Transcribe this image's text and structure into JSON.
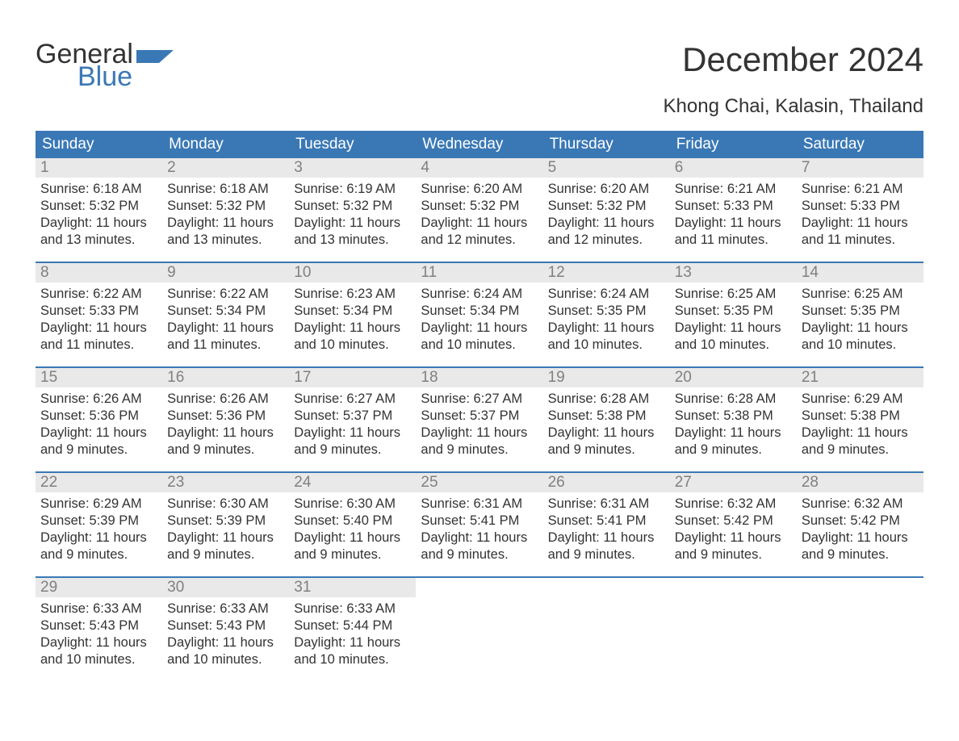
{
  "brand": {
    "word1": "General",
    "word2": "Blue",
    "flag_color": "#3a78b5"
  },
  "title": "December 2024",
  "subtitle": "Khong Chai, Kalasin, Thailand",
  "colors": {
    "header_bg": "#3a78b5",
    "header_text": "#ffffff",
    "daynum_bg": "#e9e9e9",
    "daynum_text": "#808080",
    "body_text": "#333333",
    "week_divider": "#3a78b5",
    "page_bg": "#ffffff"
  },
  "typography": {
    "title_fontsize": 42,
    "subtitle_fontsize": 24,
    "dow_fontsize": 19,
    "daynum_fontsize": 19,
    "body_fontsize": 16.5,
    "logo_fontsize": 34
  },
  "days_of_week": [
    "Sunday",
    "Monday",
    "Tuesday",
    "Wednesday",
    "Thursday",
    "Friday",
    "Saturday"
  ],
  "weeks": [
    [
      {
        "n": "1",
        "sunrise": "Sunrise: 6:18 AM",
        "sunset": "Sunset: 5:32 PM",
        "day1": "Daylight: 11 hours",
        "day2": "and 13 minutes."
      },
      {
        "n": "2",
        "sunrise": "Sunrise: 6:18 AM",
        "sunset": "Sunset: 5:32 PM",
        "day1": "Daylight: 11 hours",
        "day2": "and 13 minutes."
      },
      {
        "n": "3",
        "sunrise": "Sunrise: 6:19 AM",
        "sunset": "Sunset: 5:32 PM",
        "day1": "Daylight: 11 hours",
        "day2": "and 13 minutes."
      },
      {
        "n": "4",
        "sunrise": "Sunrise: 6:20 AM",
        "sunset": "Sunset: 5:32 PM",
        "day1": "Daylight: 11 hours",
        "day2": "and 12 minutes."
      },
      {
        "n": "5",
        "sunrise": "Sunrise: 6:20 AM",
        "sunset": "Sunset: 5:32 PM",
        "day1": "Daylight: 11 hours",
        "day2": "and 12 minutes."
      },
      {
        "n": "6",
        "sunrise": "Sunrise: 6:21 AM",
        "sunset": "Sunset: 5:33 PM",
        "day1": "Daylight: 11 hours",
        "day2": "and 11 minutes."
      },
      {
        "n": "7",
        "sunrise": "Sunrise: 6:21 AM",
        "sunset": "Sunset: 5:33 PM",
        "day1": "Daylight: 11 hours",
        "day2": "and 11 minutes."
      }
    ],
    [
      {
        "n": "8",
        "sunrise": "Sunrise: 6:22 AM",
        "sunset": "Sunset: 5:33 PM",
        "day1": "Daylight: 11 hours",
        "day2": "and 11 minutes."
      },
      {
        "n": "9",
        "sunrise": "Sunrise: 6:22 AM",
        "sunset": "Sunset: 5:34 PM",
        "day1": "Daylight: 11 hours",
        "day2": "and 11 minutes."
      },
      {
        "n": "10",
        "sunrise": "Sunrise: 6:23 AM",
        "sunset": "Sunset: 5:34 PM",
        "day1": "Daylight: 11 hours",
        "day2": "and 10 minutes."
      },
      {
        "n": "11",
        "sunrise": "Sunrise: 6:24 AM",
        "sunset": "Sunset: 5:34 PM",
        "day1": "Daylight: 11 hours",
        "day2": "and 10 minutes."
      },
      {
        "n": "12",
        "sunrise": "Sunrise: 6:24 AM",
        "sunset": "Sunset: 5:35 PM",
        "day1": "Daylight: 11 hours",
        "day2": "and 10 minutes."
      },
      {
        "n": "13",
        "sunrise": "Sunrise: 6:25 AM",
        "sunset": "Sunset: 5:35 PM",
        "day1": "Daylight: 11 hours",
        "day2": "and 10 minutes."
      },
      {
        "n": "14",
        "sunrise": "Sunrise: 6:25 AM",
        "sunset": "Sunset: 5:35 PM",
        "day1": "Daylight: 11 hours",
        "day2": "and 10 minutes."
      }
    ],
    [
      {
        "n": "15",
        "sunrise": "Sunrise: 6:26 AM",
        "sunset": "Sunset: 5:36 PM",
        "day1": "Daylight: 11 hours",
        "day2": "and 9 minutes."
      },
      {
        "n": "16",
        "sunrise": "Sunrise: 6:26 AM",
        "sunset": "Sunset: 5:36 PM",
        "day1": "Daylight: 11 hours",
        "day2": "and 9 minutes."
      },
      {
        "n": "17",
        "sunrise": "Sunrise: 6:27 AM",
        "sunset": "Sunset: 5:37 PM",
        "day1": "Daylight: 11 hours",
        "day2": "and 9 minutes."
      },
      {
        "n": "18",
        "sunrise": "Sunrise: 6:27 AM",
        "sunset": "Sunset: 5:37 PM",
        "day1": "Daylight: 11 hours",
        "day2": "and 9 minutes."
      },
      {
        "n": "19",
        "sunrise": "Sunrise: 6:28 AM",
        "sunset": "Sunset: 5:38 PM",
        "day1": "Daylight: 11 hours",
        "day2": "and 9 minutes."
      },
      {
        "n": "20",
        "sunrise": "Sunrise: 6:28 AM",
        "sunset": "Sunset: 5:38 PM",
        "day1": "Daylight: 11 hours",
        "day2": "and 9 minutes."
      },
      {
        "n": "21",
        "sunrise": "Sunrise: 6:29 AM",
        "sunset": "Sunset: 5:38 PM",
        "day1": "Daylight: 11 hours",
        "day2": "and 9 minutes."
      }
    ],
    [
      {
        "n": "22",
        "sunrise": "Sunrise: 6:29 AM",
        "sunset": "Sunset: 5:39 PM",
        "day1": "Daylight: 11 hours",
        "day2": "and 9 minutes."
      },
      {
        "n": "23",
        "sunrise": "Sunrise: 6:30 AM",
        "sunset": "Sunset: 5:39 PM",
        "day1": "Daylight: 11 hours",
        "day2": "and 9 minutes."
      },
      {
        "n": "24",
        "sunrise": "Sunrise: 6:30 AM",
        "sunset": "Sunset: 5:40 PM",
        "day1": "Daylight: 11 hours",
        "day2": "and 9 minutes."
      },
      {
        "n": "25",
        "sunrise": "Sunrise: 6:31 AM",
        "sunset": "Sunset: 5:41 PM",
        "day1": "Daylight: 11 hours",
        "day2": "and 9 minutes."
      },
      {
        "n": "26",
        "sunrise": "Sunrise: 6:31 AM",
        "sunset": "Sunset: 5:41 PM",
        "day1": "Daylight: 11 hours",
        "day2": "and 9 minutes."
      },
      {
        "n": "27",
        "sunrise": "Sunrise: 6:32 AM",
        "sunset": "Sunset: 5:42 PM",
        "day1": "Daylight: 11 hours",
        "day2": "and 9 minutes."
      },
      {
        "n": "28",
        "sunrise": "Sunrise: 6:32 AM",
        "sunset": "Sunset: 5:42 PM",
        "day1": "Daylight: 11 hours",
        "day2": "and 9 minutes."
      }
    ],
    [
      {
        "n": "29",
        "sunrise": "Sunrise: 6:33 AM",
        "sunset": "Sunset: 5:43 PM",
        "day1": "Daylight: 11 hours",
        "day2": "and 10 minutes."
      },
      {
        "n": "30",
        "sunrise": "Sunrise: 6:33 AM",
        "sunset": "Sunset: 5:43 PM",
        "day1": "Daylight: 11 hours",
        "day2": "and 10 minutes."
      },
      {
        "n": "31",
        "sunrise": "Sunrise: 6:33 AM",
        "sunset": "Sunset: 5:44 PM",
        "day1": "Daylight: 11 hours",
        "day2": "and 10 minutes."
      },
      {
        "empty": true
      },
      {
        "empty": true
      },
      {
        "empty": true
      },
      {
        "empty": true
      }
    ]
  ]
}
